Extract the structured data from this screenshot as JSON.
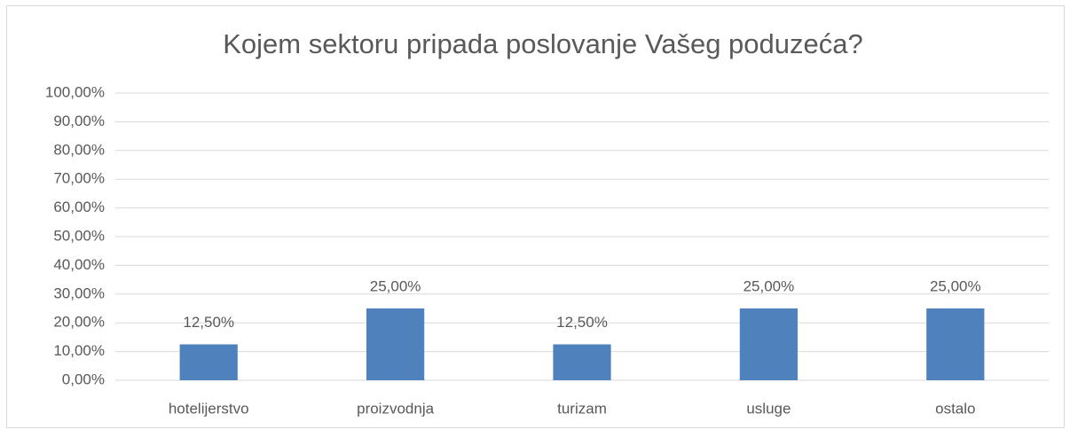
{
  "chart_data": {
    "type": "bar",
    "title": "Kojem sektoru pripada poslovanje Vašeg poduzeća?",
    "categories": [
      "hotelijerstvo",
      "proizvodnja",
      "turizam",
      "usluge",
      "ostalo"
    ],
    "values": [
      12.5,
      25,
      12.5,
      25,
      25
    ],
    "value_labels": [
      "12,50%",
      "25,00%",
      "12,50%",
      "25,00%",
      "25,00%"
    ],
    "color": "#4f81bd",
    "ylim": [
      0,
      100
    ],
    "yticks": [
      {
        "value": 0,
        "label": "0,00%"
      },
      {
        "value": 10,
        "label": "10,00%"
      },
      {
        "value": 20,
        "label": "20,00%"
      },
      {
        "value": 30,
        "label": "30,00%"
      },
      {
        "value": 40,
        "label": "40,00%"
      },
      {
        "value": 50,
        "label": "50,00%"
      },
      {
        "value": 60,
        "label": "60,00%"
      },
      {
        "value": 70,
        "label": "70,00%"
      },
      {
        "value": 80,
        "label": "80,00%"
      },
      {
        "value": 90,
        "label": "90,00%"
      },
      {
        "value": 100,
        "label": "100,00%"
      }
    ],
    "grid": true
  }
}
